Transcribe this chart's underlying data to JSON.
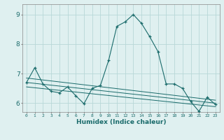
{
  "title": "",
  "xlabel": "Humidex (Indice chaleur)",
  "ylabel": "",
  "bg_color": "#dff0f0",
  "grid_color": "#b8d8d8",
  "line_color": "#1a6b6b",
  "x_ticks": [
    0,
    1,
    2,
    3,
    4,
    5,
    6,
    7,
    8,
    9,
    10,
    11,
    12,
    13,
    14,
    15,
    16,
    17,
    18,
    19,
    20,
    21,
    22,
    23
  ],
  "ylim": [
    5.7,
    9.35
  ],
  "yticks": [
    6,
    7,
    8,
    9
  ],
  "series": {
    "main": {
      "x": [
        0,
        1,
        2,
        3,
        4,
        5,
        6,
        7,
        8,
        9,
        10,
        11,
        12,
        13,
        14,
        15,
        16,
        17,
        18,
        19,
        20,
        21,
        22,
        23
      ],
      "y": [
        6.7,
        7.2,
        6.65,
        6.4,
        6.35,
        6.55,
        6.25,
        5.98,
        6.5,
        6.6,
        7.45,
        8.6,
        8.75,
        9.0,
        8.7,
        8.25,
        7.75,
        6.65,
        6.65,
        6.5,
        6.05,
        5.72,
        6.2,
        5.95
      ]
    },
    "trend1": {
      "x": [
        0,
        23
      ],
      "y": [
        6.85,
        6.1
      ]
    },
    "trend2": {
      "x": [
        0,
        23
      ],
      "y": [
        6.7,
        6.0
      ]
    },
    "trend3": {
      "x": [
        0,
        23
      ],
      "y": [
        6.55,
        5.88
      ]
    }
  }
}
